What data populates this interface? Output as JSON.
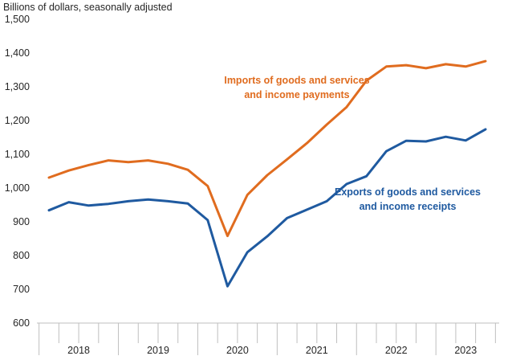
{
  "chart_data": {
    "type": "line",
    "ylabel": "Billions of dollars, seasonally adjusted",
    "ylim": [
      600,
      1500
    ],
    "yticks": [
      600,
      700,
      800,
      900,
      "1,000",
      "1,100",
      "1,200",
      "1,300",
      "1,400",
      "1,500"
    ],
    "ytick_values": [
      600,
      700,
      800,
      900,
      1000,
      1100,
      1200,
      1300,
      1400,
      1500
    ],
    "x_groups": [
      "2018",
      "2019",
      "2020",
      "2021",
      "2022",
      "2023"
    ],
    "quarters": [
      "2018Q1",
      "2018Q2",
      "2018Q3",
      "2018Q4",
      "2019Q1",
      "2019Q2",
      "2019Q3",
      "2019Q4",
      "2020Q1",
      "2020Q2",
      "2020Q3",
      "2020Q4",
      "2021Q1",
      "2021Q2",
      "2021Q3",
      "2021Q4",
      "2022Q1",
      "2022Q2",
      "2022Q3",
      "2022Q4",
      "2023Q1",
      "2023Q2",
      "2023Q3"
    ],
    "grid": false,
    "series": [
      {
        "name_lines": [
          "Imports of goods and services",
          "and income payments"
        ],
        "color": "#E06C1F",
        "values": [
          1031,
          1052,
          1068,
          1082,
          1077,
          1082,
          1072,
          1054,
          1006,
          858,
          980,
          1038,
          1085,
          1133,
          1188,
          1240,
          1318,
          1360,
          1364,
          1355,
          1367,
          1360,
          1376
        ]
      },
      {
        "name_lines": [
          "Exports of goods and services",
          "and income receipts"
        ],
        "color": "#1F5AA0",
        "values": [
          934,
          958,
          948,
          953,
          961,
          966,
          961,
          954,
          905,
          709,
          810,
          857,
          911,
          936,
          961,
          1012,
          1035,
          1109,
          1140,
          1138,
          1152,
          1141,
          1174
        ]
      }
    ]
  }
}
